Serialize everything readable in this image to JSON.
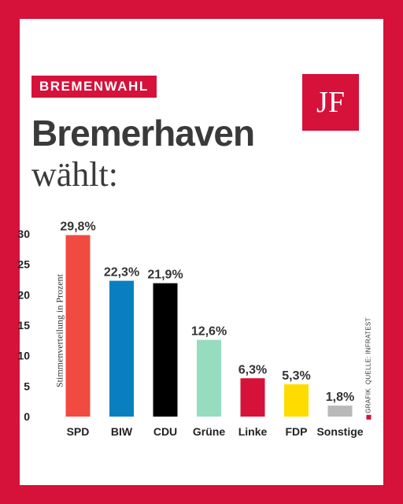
{
  "header": {
    "tag": "BREMENWAHL",
    "title": "Bremerhaven",
    "subtitle": "wählt:",
    "logo_text": "JF"
  },
  "source": {
    "grafik": "GRAFIK",
    "quelle": "QUELLE: INFRATEST"
  },
  "colors": {
    "brand": "#d6113a"
  },
  "chart_data": {
    "type": "bar",
    "ylabel": "Stimmenverteilung in Prozent",
    "xlabel": "",
    "ylim": [
      0,
      30
    ],
    "yticks": [
      0,
      5,
      10,
      15,
      20,
      25,
      30
    ],
    "categories": [
      "SPD",
      "BIW",
      "CDU",
      "Grüne",
      "Linke",
      "FDP",
      "Sonstige"
    ],
    "values": [
      29.8,
      22.3,
      21.9,
      12.6,
      6.3,
      5.3,
      1.8
    ],
    "value_labels": [
      "29,8%",
      "22,3%",
      "21,9%",
      "12,6%",
      "6,3%",
      "5,3%",
      "1,8%"
    ],
    "bar_colors": [
      "#f04a41",
      "#0a7fbf",
      "#000000",
      "#96dcbf",
      "#d6113a",
      "#ffdc00",
      "#b9b9b9"
    ],
    "grid": false
  }
}
